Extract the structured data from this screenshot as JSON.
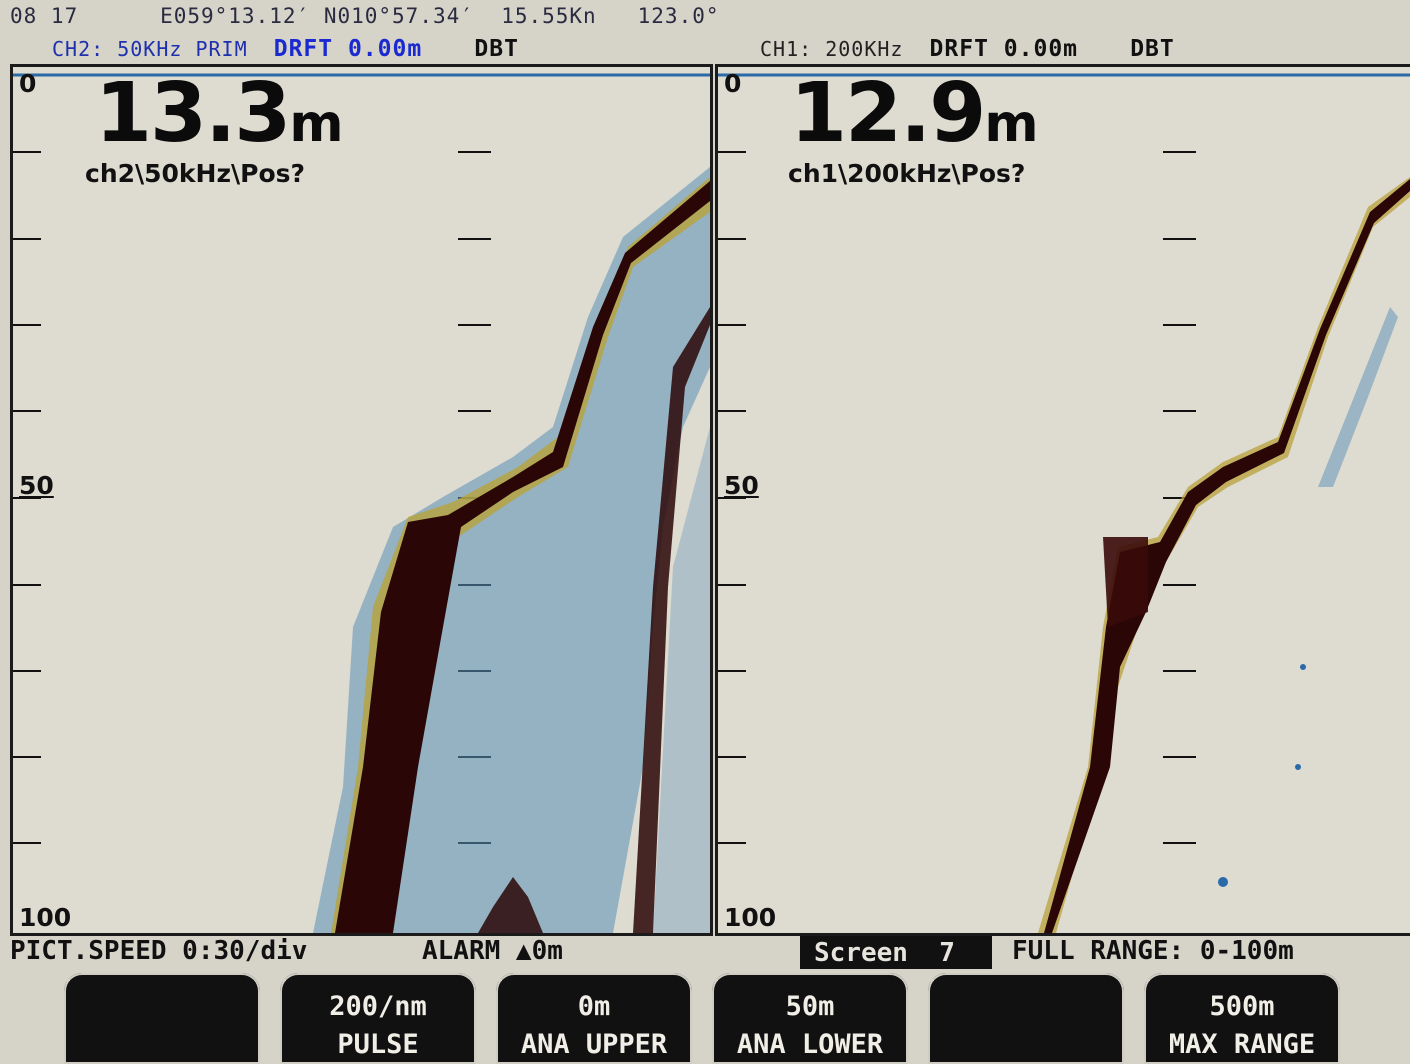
{
  "header": {
    "time": "08 17",
    "longitude": "E059°13.12′",
    "latitude": "N010°57.34′",
    "speed": "15.55Kn",
    "heading": "123.0°",
    "ch2_info": "CH2: 50KHz PRIM",
    "ch2_draft": "DRFT 0.00m",
    "ch2_mode": "DBT",
    "ch1_info": "CH1: 200KHz",
    "ch1_draft": "DRFT 0.00m",
    "ch1_mode": "DBT"
  },
  "left_panel": {
    "depth_value": "13.3",
    "depth_unit": "m",
    "channel_label": "ch2\\50kHz\\Pos?",
    "scale_top": "0",
    "scale_mid": "50",
    "scale_bottom": "100"
  },
  "right_panel": {
    "depth_value": "12.9",
    "depth_unit": "m",
    "channel_label": "ch1\\200kHz\\Pos?",
    "scale_top": "0",
    "scale_mid": "50",
    "scale_bottom": "100"
  },
  "status": {
    "pict_speed": "PICT.SPEED 0:30/div",
    "alarm": "ALARM ▲0m",
    "screen": "Screen  7",
    "full_range": "FULL RANGE: 0-100m"
  },
  "softkeys": [
    {
      "value": "",
      "label": ""
    },
    {
      "value": "200/nm",
      "label": "PULSE"
    },
    {
      "value": "0m",
      "label": "ANA UPPER"
    },
    {
      "value": "50m",
      "label": "ANA LOWER"
    },
    {
      "value": "",
      "label": ""
    },
    {
      "value": "500m",
      "label": "MAX RANGE"
    }
  ],
  "colors": {
    "background": "#d6d3c9",
    "echo_strong": "#3a0a0a",
    "echo_medium": "#c6a020",
    "echo_weak": "#2a6aa8",
    "header_blue": "#1e2fb0"
  }
}
